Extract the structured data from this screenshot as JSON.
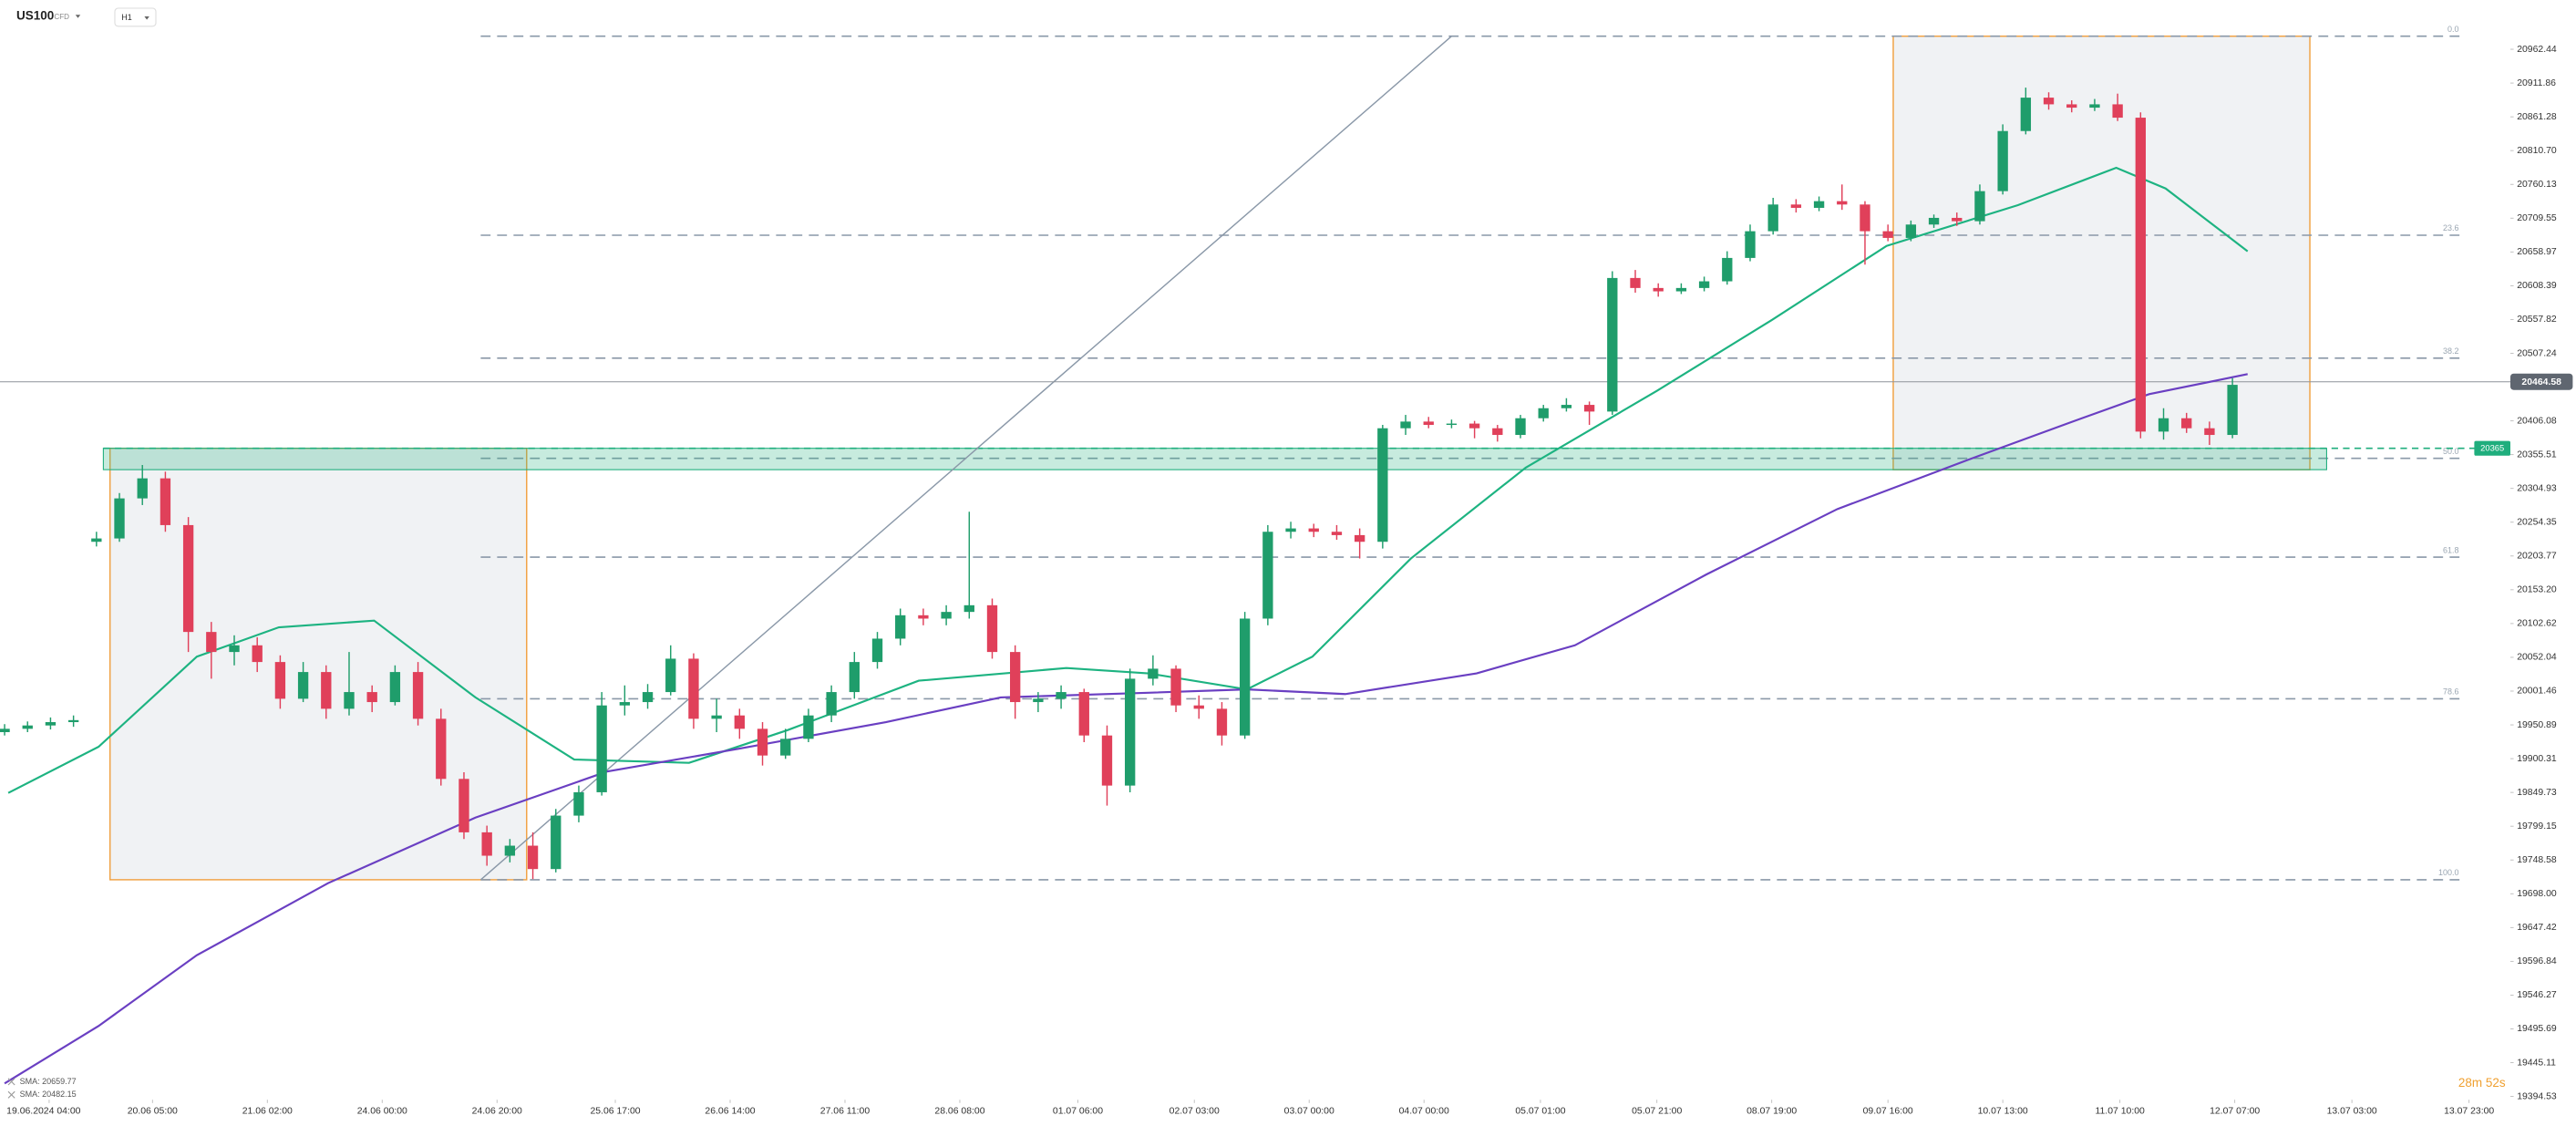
{
  "chart_data": {
    "type": "candlestick",
    "symbol": "US100",
    "instrument_type": "CFD",
    "timeframe": "H1",
    "countdown": "28m 52s",
    "up_color": "#1f9d6b",
    "down_color": "#e0405a",
    "ylim": [
      19394.53,
      21036.2
    ],
    "xlim": [
      -0.2,
      109.1
    ],
    "yticks": [
      20962.44,
      20911.86,
      20861.28,
      {
        "value": 20810.7,
        "label": "20810.70"
      },
      20760.13,
      20709.55,
      20658.97,
      20608.39,
      20557.82,
      20507.24,
      20406.08,
      20355.51,
      20304.93,
      20254.35,
      20203.77,
      {
        "value": 20153.2,
        "label": "20153.20"
      },
      20102.62,
      20052.04,
      20001.46,
      19950.89,
      19900.31,
      19849.73,
      19799.15,
      19748.58,
      {
        "value": 19698,
        "label": "19698.00"
      },
      19647.42,
      19596.84,
      19546.27,
      19495.69,
      19445.11,
      19394.53
    ],
    "xticks": [
      {
        "value": 1.94,
        "label": "19.06.2024 04:00"
      },
      {
        "value": 6.44,
        "label": "20.06 05:00"
      },
      {
        "value": 11.44,
        "label": "21.06 02:00"
      },
      {
        "value": 16.44,
        "label": "24.06 00:00"
      },
      {
        "value": 21.44,
        "label": "24.06 20:00"
      },
      {
        "value": 26.59,
        "label": "25.06 17:00"
      },
      {
        "value": 31.59,
        "label": "26.06 14:00"
      },
      {
        "value": 36.59,
        "label": "27.06 11:00"
      },
      {
        "value": 41.59,
        "label": "28.06 08:00"
      },
      {
        "value": 46.73,
        "label": "01.07 06:00"
      },
      {
        "value": 51.8,
        "label": "02.07 03:00"
      },
      {
        "value": 56.8,
        "label": "03.07 00:00"
      },
      {
        "value": 61.8,
        "label": "04.07 00:00"
      },
      {
        "value": 66.87,
        "label": "05.07 01:00"
      },
      {
        "value": 71.94,
        "label": "05.07 21:00"
      },
      {
        "value": 76.94,
        "label": "08.07 19:00"
      },
      {
        "value": 82.0,
        "label": "09.07 16:00"
      },
      {
        "value": 87.0,
        "label": "10.07 13:00"
      },
      {
        "value": 92.1,
        "label": "11.07 10:00"
      },
      {
        "value": 97.1,
        "label": "12.07 07:00"
      },
      {
        "value": 102.2,
        "label": "13.07 03:00"
      },
      {
        "value": 107.3,
        "label": "13.07 23:00"
      }
    ],
    "ohlc": [
      [
        19940,
        19952,
        19935,
        19945
      ],
      [
        19945,
        19956,
        19940,
        19950
      ],
      [
        19950,
        19962,
        19944,
        19955
      ],
      [
        19955,
        19965,
        19948,
        19958
      ],
      [
        20225,
        20240,
        20218,
        20230
      ],
      [
        20230,
        20298,
        20225,
        20290
      ],
      [
        20290,
        20340,
        20280,
        20320
      ],
      [
        20320,
        20330,
        20240,
        20250
      ],
      [
        20250,
        20262,
        20060,
        20090
      ],
      [
        20090,
        20105,
        20020,
        20060
      ],
      [
        20060,
        20085,
        20040,
        20070
      ],
      [
        20070,
        20082,
        20030,
        20045
      ],
      [
        20045,
        20055,
        19975,
        19990
      ],
      [
        19990,
        20045,
        19985,
        20030
      ],
      [
        20030,
        20040,
        19960,
        19975
      ],
      [
        19975,
        20060,
        19965,
        20000
      ],
      [
        20000,
        20010,
        19970,
        19985
      ],
      [
        19985,
        20040,
        19980,
        20030
      ],
      [
        20030,
        20045,
        19950,
        19960
      ],
      [
        19960,
        19975,
        19860,
        19870
      ],
      [
        19870,
        19880,
        19780,
        19790
      ],
      [
        19790,
        19800,
        19740,
        19755
      ],
      [
        19755,
        19780,
        19745,
        19770
      ],
      [
        19770,
        19790,
        19720,
        19735
      ],
      [
        19735,
        19825,
        19730,
        19815
      ],
      [
        19815,
        19860,
        19805,
        19850
      ],
      [
        19850,
        20000,
        19845,
        19980
      ],
      [
        19980,
        20010,
        19965,
        19985
      ],
      [
        19985,
        20012,
        19975,
        20000
      ],
      [
        20000,
        20070,
        19995,
        20050
      ],
      [
        20050,
        20058,
        19945,
        19960
      ],
      [
        19960,
        19990,
        19940,
        19965
      ],
      [
        19965,
        19975,
        19930,
        19945
      ],
      [
        19945,
        19955,
        19890,
        19905
      ],
      [
        19905,
        19945,
        19900,
        19930
      ],
      [
        19930,
        19975,
        19925,
        19965
      ],
      [
        19965,
        20010,
        19955,
        20000
      ],
      [
        20000,
        20060,
        19990,
        20045
      ],
      [
        20045,
        20090,
        20035,
        20080
      ],
      [
        20080,
        20125,
        20070,
        20115
      ],
      [
        20115,
        20125,
        20100,
        20110
      ],
      [
        20110,
        20130,
        20100,
        20120
      ],
      [
        20120,
        20270,
        20110,
        20130
      ],
      [
        20130,
        20140,
        20050,
        20060
      ],
      [
        20060,
        20070,
        19960,
        19985
      ],
      [
        19985,
        20000,
        19970,
        19990
      ],
      [
        19990,
        20010,
        19975,
        20000
      ],
      [
        20000,
        20005,
        19925,
        19935
      ],
      [
        19935,
        19950,
        19830,
        19860
      ],
      [
        19860,
        20035,
        19850,
        20020
      ],
      [
        20020,
        20055,
        20010,
        20035
      ],
      [
        20035,
        20040,
        19970,
        19980
      ],
      [
        19980,
        19995,
        19960,
        19975
      ],
      [
        19975,
        19985,
        19920,
        19935
      ],
      [
        19935,
        20120,
        19930,
        20110
      ],
      [
        20110,
        20250,
        20100,
        20240
      ],
      [
        20240,
        20255,
        20230,
        20245
      ],
      [
        20245,
        20252,
        20232,
        20240
      ],
      [
        20240,
        20250,
        20228,
        20235
      ],
      [
        20235,
        20245,
        20200,
        20225
      ],
      [
        20225,
        20400,
        20215,
        20395
      ],
      [
        20395,
        20415,
        20385,
        20405
      ],
      [
        20405,
        20412,
        20395,
        20400
      ],
      [
        20400,
        20408,
        20395,
        20402
      ],
      [
        20402,
        20406,
        20380,
        20395
      ],
      [
        20395,
        20400,
        20375,
        20385
      ],
      [
        20385,
        20415,
        20380,
        20410
      ],
      [
        20410,
        20430,
        20405,
        20425
      ],
      [
        20425,
        20440,
        20420,
        20430
      ],
      [
        20430,
        20435,
        20400,
        20420
      ],
      [
        20420,
        20630,
        20415,
        20620
      ],
      [
        20620,
        20632,
        20598,
        20605
      ],
      [
        20605,
        20612,
        20592,
        20600
      ],
      [
        20600,
        20612,
        20596,
        20605
      ],
      [
        20605,
        20622,
        20600,
        20615
      ],
      [
        20615,
        20660,
        20610,
        20650
      ],
      [
        20650,
        20700,
        20645,
        20690
      ],
      [
        20690,
        20740,
        20685,
        20730
      ],
      [
        20730,
        20738,
        20718,
        20725
      ],
      [
        20725,
        20742,
        20720,
        20735
      ],
      [
        20735,
        20760,
        20722,
        20730
      ],
      [
        20730,
        20735,
        20640,
        20690
      ],
      [
        20690,
        20700,
        20675,
        20680
      ],
      [
        20680,
        20706,
        20675,
        20700
      ],
      [
        20700,
        20715,
        20695,
        20710
      ],
      [
        20710,
        20718,
        20698,
        20705
      ],
      [
        20705,
        20760,
        20700,
        20750
      ],
      [
        20750,
        20850,
        20745,
        20840
      ],
      [
        20840,
        20905,
        20835,
        20890
      ],
      [
        20890,
        20898,
        20872,
        20880
      ],
      [
        20880,
        20886,
        20868,
        20875
      ],
      [
        20875,
        20888,
        20870,
        20880
      ],
      [
        20880,
        20896,
        20855,
        20860
      ],
      [
        20860,
        20868,
        20380,
        20390
      ],
      [
        20390,
        20425,
        20378,
        20410
      ],
      [
        20410,
        20418,
        20388,
        20395
      ],
      [
        20395,
        20405,
        20370,
        20385
      ],
      [
        20385,
        20470,
        20380,
        20460
      ]
    ],
    "sma": [
      {
        "label": "SMA: 20659.77",
        "color": "#1db381",
        "x": [
          0.16,
          4.09,
          8.37,
          11.94,
          16.09,
          20.5,
          24.8,
          29.8,
          34.09,
          39.8,
          46.23,
          49.8,
          54.09,
          56.94,
          61.23,
          66.23,
          71.94,
          76.94,
          81.94,
          87.66,
          91.94,
          94.09,
          97.66
        ],
        "values": [
          19849,
          19918,
          20053,
          20097,
          20107,
          19992,
          19899,
          19894,
          19943,
          20017,
          20036,
          20028,
          20004,
          20053,
          20200,
          20336,
          20451,
          20557,
          20668,
          20729,
          20785,
          20754,
          20660
        ]
      },
      {
        "label": "SMA: 20482.15",
        "color": "#6a3fc2",
        "x": [
          0,
          4.09,
          8.37,
          14.09,
          20.5,
          26.23,
          31.94,
          38.37,
          43.37,
          49.8,
          54.09,
          58.37,
          64.09,
          68.37,
          74.09,
          79.8,
          85.51,
          89.8,
          93.37,
          97.66
        ],
        "values": [
          19414,
          19500,
          19606,
          19714,
          19812,
          19881,
          19915,
          19955,
          19992,
          19999,
          20004,
          19997,
          20028,
          20070,
          20176,
          20274,
          20348,
          20402,
          20446,
          20476
        ]
      }
    ],
    "fib": {
      "x": [
        20.73,
        107.0
      ],
      "color": "#8a98a8",
      "levels": [
        {
          "value": 20982,
          "label": "0.0"
        },
        {
          "value": 20684,
          "label": "23.6"
        },
        {
          "value": 20500,
          "label": "38.2"
        },
        {
          "value": 20350,
          "label": "50.0"
        },
        {
          "value": 20202,
          "label": "61.8"
        },
        {
          "value": 19990,
          "label": "78.6"
        },
        {
          "value": 19719,
          "label": "100.0"
        }
      ]
    },
    "trendline": {
      "x": [
        20.73,
        63.0
      ],
      "values": [
        19719,
        20982
      ],
      "color": "#8a98a8"
    },
    "boxes": [
      {
        "x": [
          4.59,
          22.73
        ],
        "values": [
          20365,
          19719
        ],
        "color": "#f0a040"
      },
      {
        "x": [
          82.23,
          100.37
        ],
        "values": [
          20982,
          20333
        ],
        "color": "#f0a040"
      }
    ],
    "zone": {
      "x": [
        4.3,
        101.1
      ],
      "values": [
        20365,
        20333
      ],
      "color": "#1fae7d"
    },
    "current_price": 20464.58
  }
}
